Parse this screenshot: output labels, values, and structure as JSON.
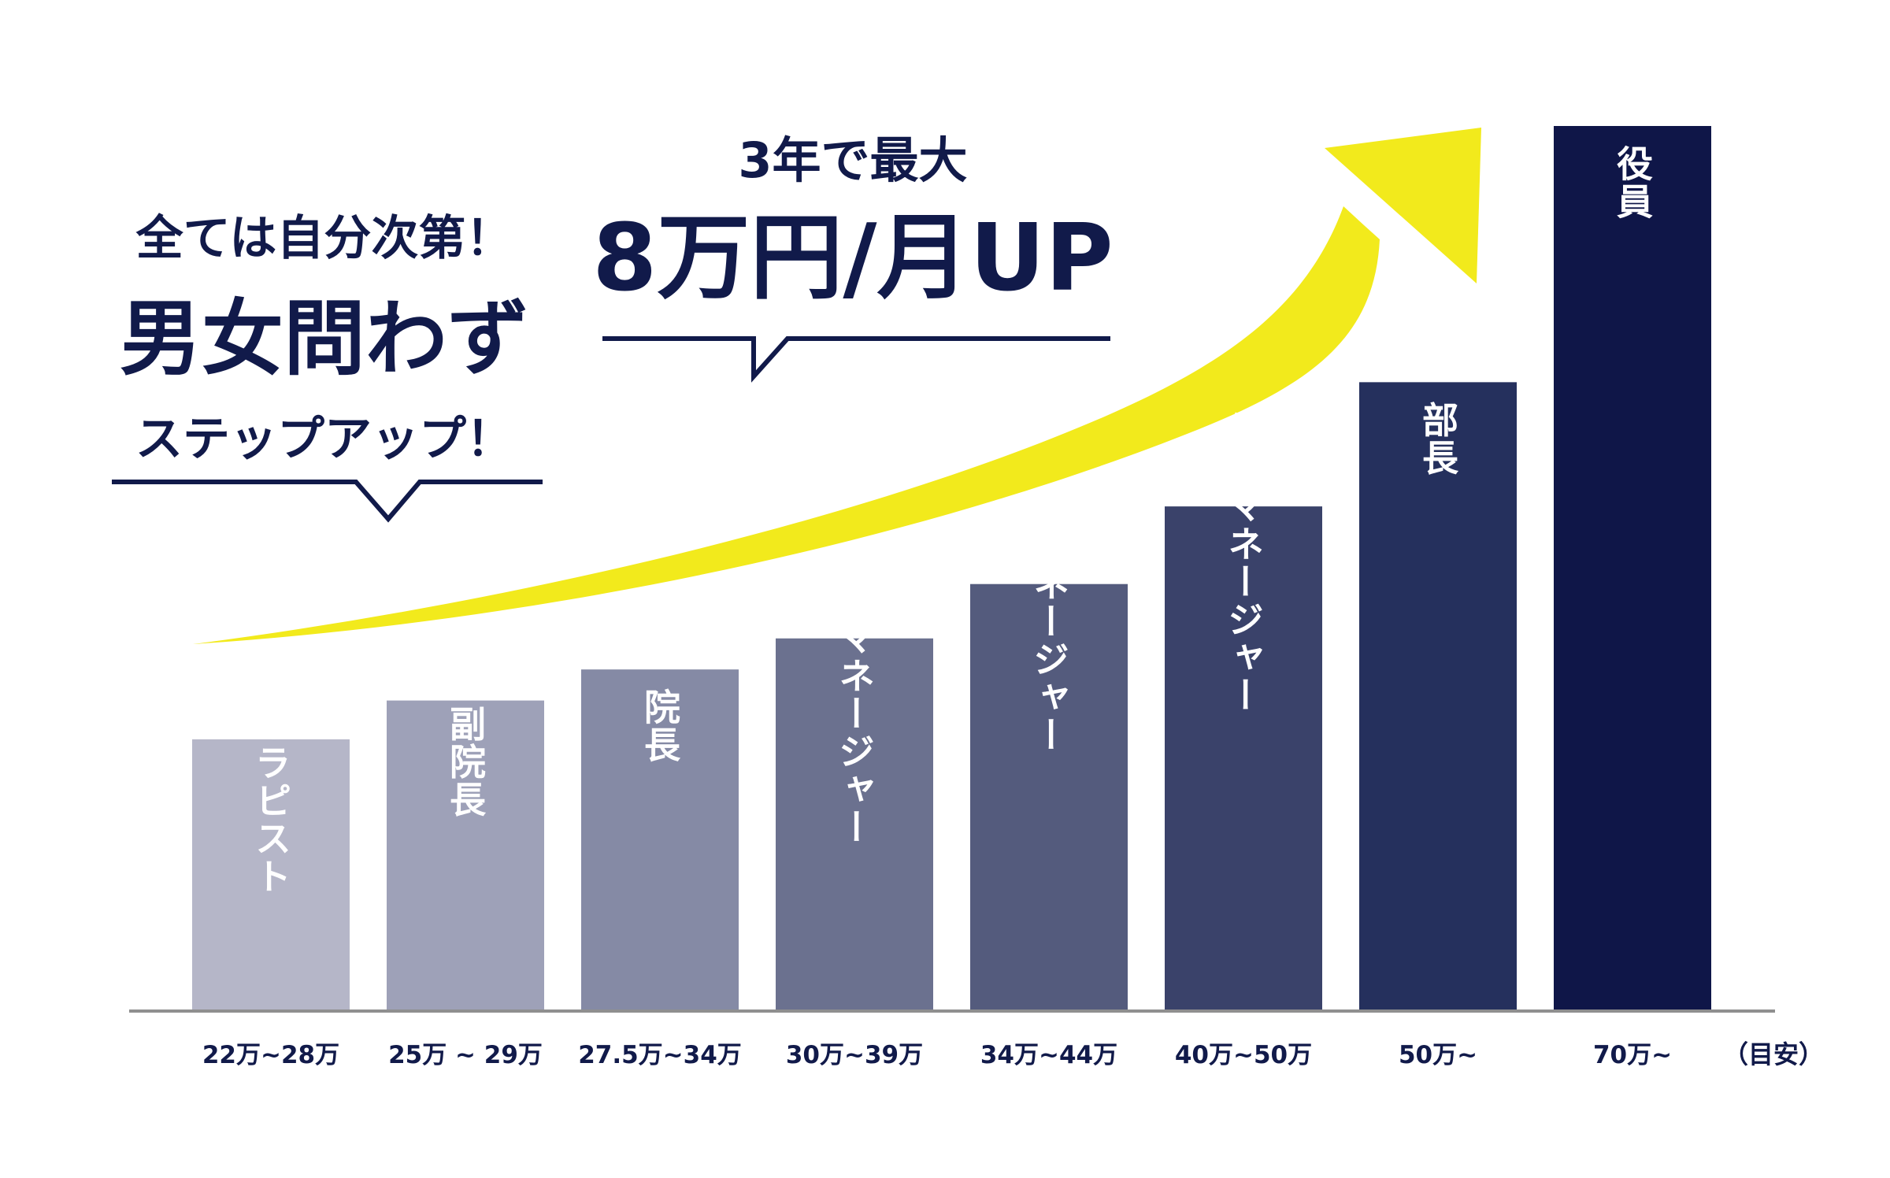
{
  "colors": {
    "navy": "#111a4a",
    "axis": "#8f8f8f",
    "arrow": "#f2ea1c",
    "bars": [
      "#b5b6c8",
      "#9ea1b8",
      "#858aa5",
      "#6b718f",
      "#545b7d",
      "#3a426a",
      "#25305d",
      "#0f1648"
    ]
  },
  "callout_left": {
    "line1": "全ては自分次第！",
    "line2": "男女問わず",
    "line3": "ステップアップ！"
  },
  "callout_right": {
    "line1": "3年で最大",
    "line2": "8万円/月UP"
  },
  "chart_data": {
    "type": "bar",
    "title": "",
    "categories": [
      "セラピスト",
      "副院長",
      "院長",
      "サブマネージャー",
      "マネージャー",
      "統括マネージャー",
      "部長",
      "役員"
    ],
    "salary_labels": [
      "22万~28万",
      "25万 ~ 29万",
      "27.5万~34万",
      "30万~39万",
      "34万~44万",
      "40万~50万",
      "50万~",
      "70万~"
    ],
    "values": [
      35,
      40,
      44,
      48,
      55,
      65,
      81,
      114
    ],
    "ylim": [
      0,
      114
    ],
    "note": "（目安）",
    "xlabel": "",
    "ylabel": ""
  }
}
